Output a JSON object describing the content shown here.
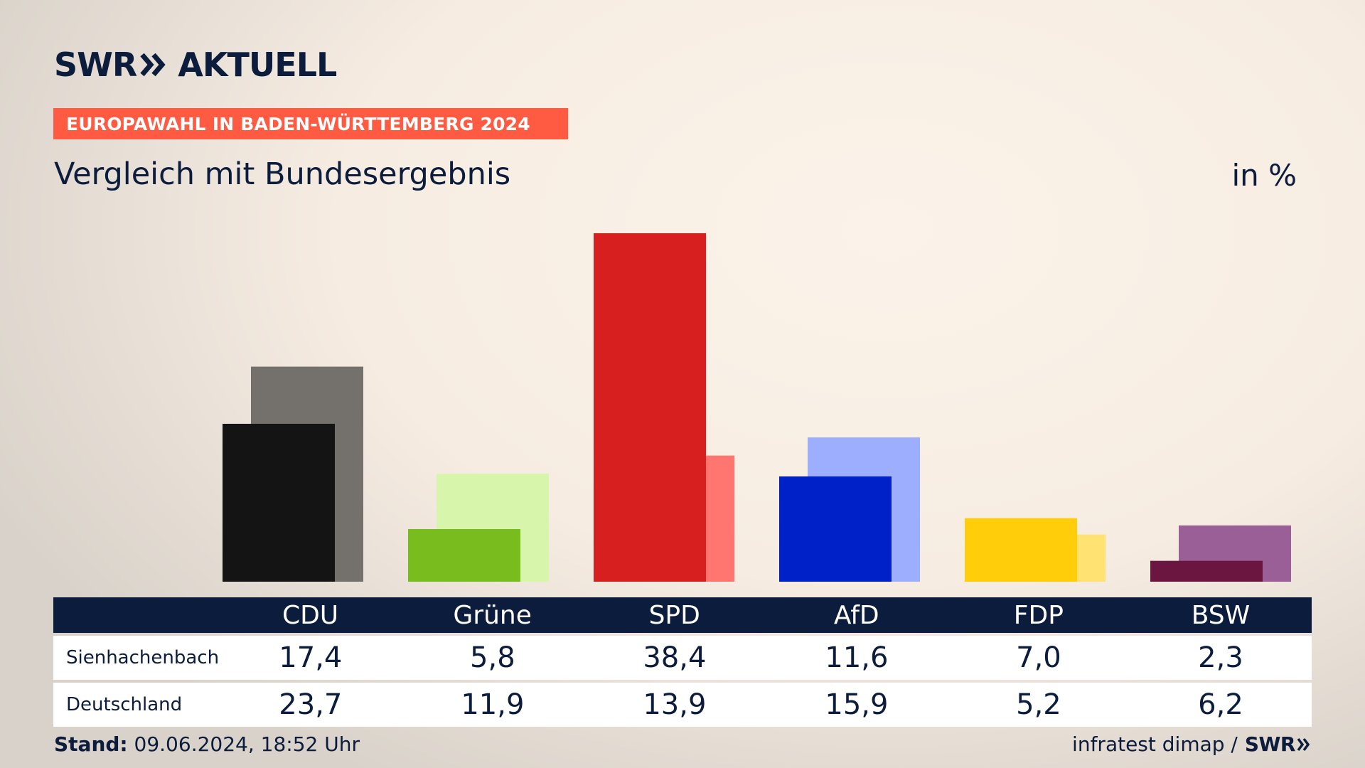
{
  "logo": {
    "text_left": "SWR",
    "text_right": "AKTUELL"
  },
  "header": {
    "badge": "EUROPAWAHL IN BADEN-WÜRTTEMBERG 2024",
    "subtitle": "Vergleich mit Bundesergebnis",
    "unit": "in %"
  },
  "colors": {
    "navy": "#0c1c3c",
    "badge": "#ff5a42"
  },
  "chart_data": {
    "type": "bar",
    "categories": [
      "CDU",
      "Grüne",
      "SPD",
      "AfD",
      "FDP",
      "BSW"
    ],
    "series": [
      {
        "name": "Sienhachenbach",
        "values": [
          17.4,
          5.8,
          38.4,
          11.6,
          7.0,
          2.3
        ],
        "colors": [
          "#141414",
          "#78bc1e",
          "#d71f1f",
          "#0020c8",
          "#ffcd0a",
          "#6b1640"
        ]
      },
      {
        "name": "Deutschland",
        "values": [
          23.7,
          11.9,
          13.9,
          15.9,
          5.2,
          6.2
        ],
        "colors": [
          "#74706c",
          "#d8f5ac",
          "#ff7570",
          "#9eaefe",
          "#ffe272",
          "#9b5f98"
        ]
      }
    ],
    "value_labels": {
      "Sienhachenbach": [
        "17,4",
        "5,8",
        "38,4",
        "11,6",
        "7,0",
        "2,3"
      ],
      "Deutschland": [
        "23,7",
        "11,9",
        "13,9",
        "15,9",
        "5,2",
        "6,2"
      ]
    },
    "ylim": [
      0,
      40
    ],
    "grid": false,
    "legend": "table-below"
  },
  "footer": {
    "stand_label": "Stand:",
    "stand_value": "09.06.2024, 18:52 Uhr",
    "source": "infratest dimap /",
    "source_brand": "SWR"
  }
}
